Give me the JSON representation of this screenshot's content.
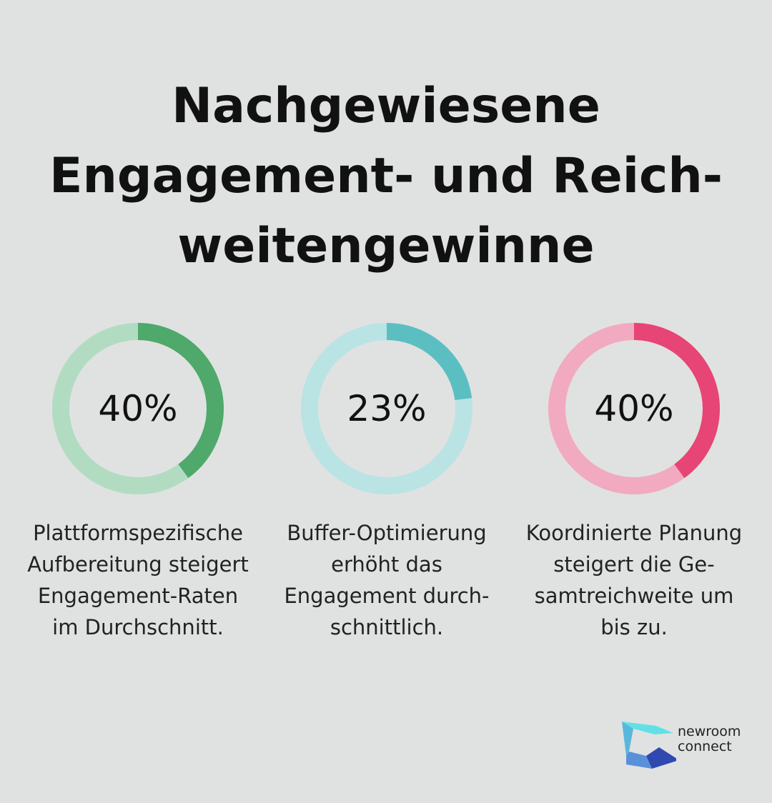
{
  "title_lines": [
    "Nachgewiesene",
    "Engagement- und Reich-",
    "weitengewinne"
  ],
  "chart_data": [
    {
      "type": "pie",
      "variant": "donut",
      "value": 40,
      "label": "40%",
      "color": "#4ea96b",
      "track_color": "#b2dcc1",
      "caption_lines": [
        "Plattformspezifische",
        "Aufbereitung steigert",
        "Engagement-Raten",
        "im Durchschnitt."
      ]
    },
    {
      "type": "pie",
      "variant": "donut",
      "value": 23,
      "label": "23%",
      "color": "#5bbfc2",
      "track_color": "#bae3e4",
      "caption_lines": [
        "Buffer-Optimierung",
        "erhöht das",
        "Engagement durch-",
        "schnittlich."
      ]
    },
    {
      "type": "pie",
      "variant": "donut",
      "value": 40,
      "label": "40%",
      "color": "#e64576",
      "track_color": "#f2aac0",
      "caption_lines": [
        "Koordinierte Planung",
        "steigert die Ge-",
        "samtreichweite um",
        "bis zu."
      ]
    }
  ],
  "logo": {
    "line1": "newroom",
    "line2": "connect"
  }
}
